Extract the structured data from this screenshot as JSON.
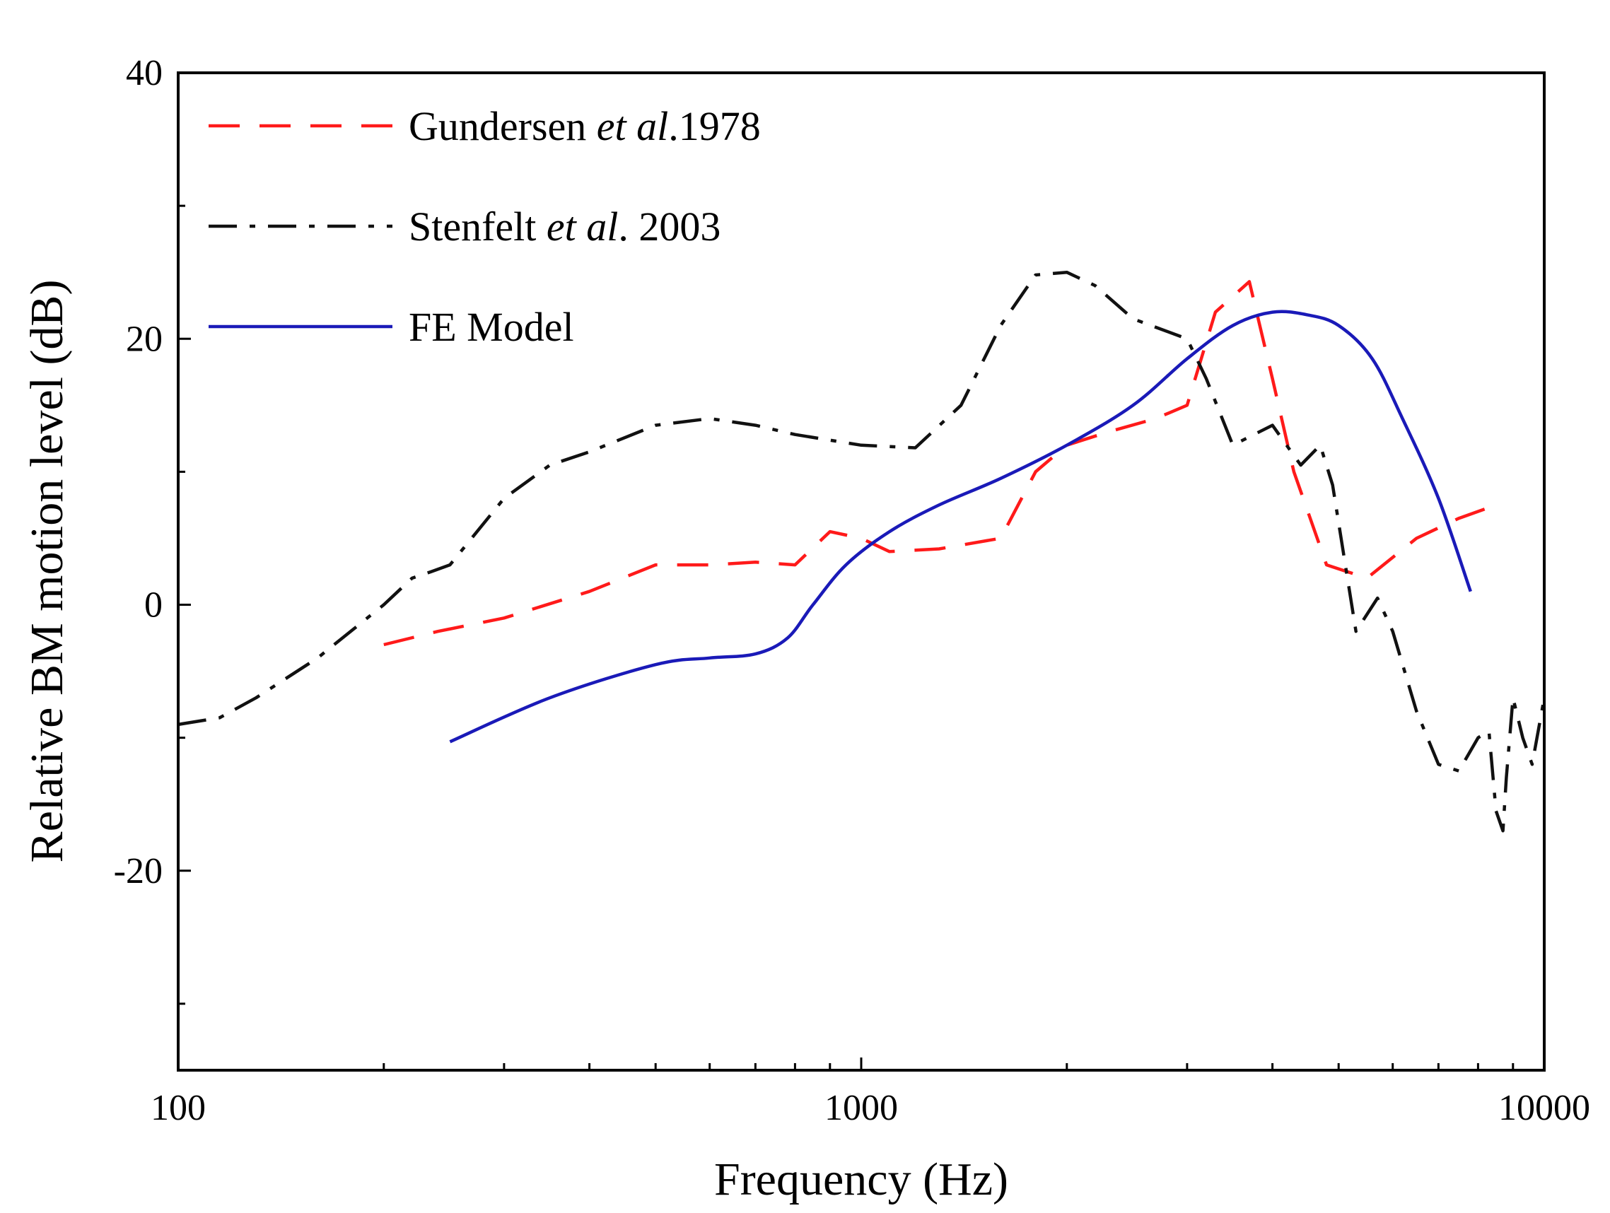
{
  "chart_data": {
    "type": "line",
    "xlabel": "Frequency (Hz)",
    "ylabel": "Relative BM motion level (dB)",
    "x_scale": "log",
    "xlim": [
      100,
      10000
    ],
    "ylim": [
      -35,
      40
    ],
    "x_ticks": [
      {
        "value": 100,
        "label": "100"
      },
      {
        "value": 1000,
        "label": "1000"
      },
      {
        "value": 10000,
        "label": "10000"
      }
    ],
    "y_ticks": [
      {
        "value": 40,
        "label": "40"
      },
      {
        "value": 20,
        "label": "20"
      },
      {
        "value": 0,
        "label": "0"
      },
      {
        "value": -20,
        "label": "-20"
      }
    ],
    "y_minor_ticks": [
      30,
      10,
      -10,
      -30
    ],
    "grid": false,
    "legend_position": "top-left",
    "series": [
      {
        "name_parts": [
          {
            "text": "Gundersen ",
            "italic": false
          },
          {
            "text": "et al",
            "italic": true
          },
          {
            "text": ".1978",
            "italic": false
          }
        ],
        "color": "#ff1a1a",
        "line_style": "dashed",
        "x": [
          200,
          240,
          300,
          400,
          500,
          600,
          700,
          800,
          900,
          1000,
          1100,
          1300,
          1600,
          1800,
          2000,
          2300,
          2700,
          3000,
          3300,
          3700,
          4000,
          4300,
          4800,
          5500,
          6500,
          7500,
          8500
        ],
        "y": [
          -3,
          -2,
          -1,
          1,
          3,
          3,
          3.2,
          3,
          5.5,
          5,
          4,
          4.2,
          5,
          10,
          12,
          13,
          14,
          15,
          22,
          24.3,
          17,
          10,
          3,
          2,
          5,
          6.5,
          7.5
        ]
      },
      {
        "name_parts": [
          {
            "text": "Stenfelt ",
            "italic": false
          },
          {
            "text": "et al",
            "italic": true
          },
          {
            "text": ". 2003",
            "italic": false
          }
        ],
        "color": "#111111",
        "line_style": "dashdot",
        "x": [
          100,
          115,
          130,
          160,
          200,
          220,
          235,
          250,
          300,
          350,
          400,
          500,
          600,
          700,
          800,
          1000,
          1200,
          1400,
          1600,
          1800,
          2000,
          2200,
          2500,
          3000,
          3200,
          3500,
          4000,
          4400,
          4700,
          4900,
          5300,
          5700,
          6000,
          6500,
          7000,
          7500,
          8000,
          8300,
          8500,
          8700,
          8800,
          9000,
          9300,
          9600,
          10000
        ],
        "y": [
          -9,
          -8.5,
          -7,
          -4,
          0,
          2,
          2.5,
          3,
          8,
          10.5,
          11.5,
          13.5,
          14,
          13.5,
          12.8,
          12,
          11.8,
          15,
          21,
          24.8,
          25,
          24,
          21.5,
          20,
          17,
          12,
          13.5,
          10.5,
          12,
          9,
          -2,
          0.5,
          -2,
          -8,
          -12,
          -12.5,
          -10,
          -9.5,
          -15.5,
          -17,
          -13,
          -7,
          -10,
          -12,
          -7
        ]
      },
      {
        "name": "FE Model",
        "color": "#1a1ab8",
        "line_style": "solid",
        "x": [
          250,
          350,
          500,
          600,
          700,
          780,
          850,
          950,
          1100,
          1300,
          1600,
          2000,
          2500,
          3000,
          3500,
          4000,
          4500,
          5000,
          5600,
          6200,
          7000,
          7800
        ],
        "y": [
          -10.3,
          -7,
          -4.5,
          -4,
          -3.7,
          -2.5,
          0,
          3,
          5.5,
          7.5,
          9.5,
          12,
          15,
          18.5,
          21,
          22,
          21.8,
          21,
          18.5,
          14,
          8,
          1
        ]
      }
    ]
  }
}
